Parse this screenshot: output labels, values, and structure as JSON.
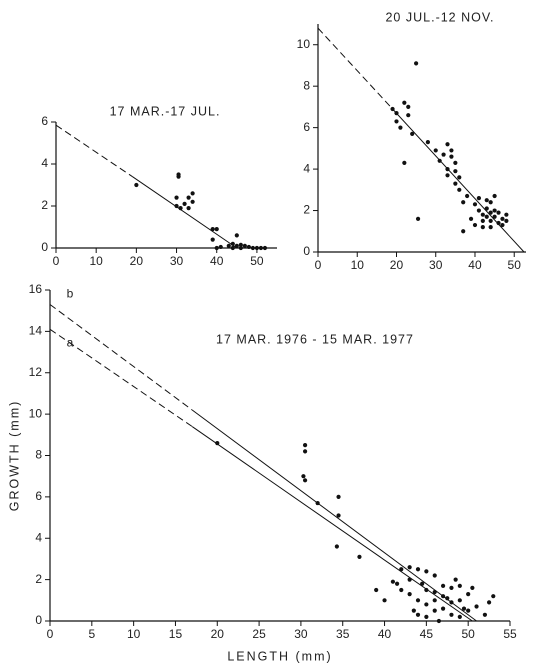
{
  "chart_data": [
    {
      "type": "scatter",
      "title": "17 MAR.-17 JUL.",
      "x": [
        20,
        30.5,
        30.5,
        30,
        30,
        31,
        32,
        33,
        34,
        34,
        33,
        39,
        40,
        39,
        40,
        41,
        43,
        44,
        44,
        45,
        45,
        46,
        46,
        47,
        48,
        49,
        50,
        51,
        52
      ],
      "values": [
        3,
        3.5,
        3.4,
        2.4,
        2,
        1.9,
        2.1,
        2.4,
        2.6,
        2.2,
        1.9,
        0.9,
        0.9,
        0.4,
        0,
        0.05,
        0.1,
        0.2,
        0,
        0.6,
        0.1,
        0.15,
        0,
        0.1,
        0.05,
        0,
        0,
        0,
        0
      ],
      "xlim": [
        0,
        55
      ],
      "ylim": [
        0,
        6
      ],
      "xticks": [
        0,
        10,
        20,
        30,
        40,
        50
      ],
      "yticks": [
        0,
        2,
        4,
        6
      ],
      "lines": [
        {
          "dashed": {
            "x": [
              0,
              19
            ],
            "values": [
              5.85,
              3.4
            ]
          },
          "solid": {
            "x": [
              19,
              45
            ],
            "values": [
              3.4,
              0
            ]
          }
        }
      ]
    },
    {
      "type": "scatter",
      "title": "20 JUL.-12 NOV.",
      "x": [
        19,
        20,
        20,
        21,
        22,
        22,
        23,
        23,
        24,
        25,
        25.5,
        28,
        30,
        31,
        32,
        33,
        33,
        33,
        34,
        34,
        35,
        35,
        35,
        36,
        36,
        37,
        37,
        38,
        39,
        40,
        40,
        41,
        41,
        42,
        42,
        43,
        43,
        43,
        44,
        44,
        44,
        45,
        45,
        45,
        46,
        46,
        47,
        47,
        48,
        48,
        42,
        44
      ],
      "values": [
        6.9,
        6.7,
        6.3,
        6,
        7.2,
        4.3,
        7,
        6.6,
        5.7,
        9.1,
        1.6,
        5.3,
        4.9,
        4.4,
        4.7,
        5.2,
        4,
        3.7,
        4.9,
        4.6,
        4.3,
        3.9,
        3.3,
        3.6,
        3,
        1,
        2.4,
        2.7,
        1.6,
        2.3,
        1.3,
        2,
        2.6,
        1.8,
        1.5,
        2.1,
        1.7,
        2.5,
        2.4,
        1.5,
        1.2,
        2.7,
        2,
        1.7,
        1.4,
        1.9,
        1.6,
        1.3,
        1.8,
        1.5,
        1.2,
        1.9
      ],
      "xlim": [
        0,
        53
      ],
      "ylim": [
        0,
        11
      ],
      "xticks": [
        0,
        10,
        20,
        30,
        40,
        50
      ],
      "yticks": [
        0,
        2,
        4,
        6,
        8,
        10
      ],
      "lines": [
        {
          "dashed": {
            "x": [
              0,
              19
            ],
            "values": [
              10.8,
              6.9
            ]
          },
          "solid": {
            "x": [
              19,
              52.5
            ],
            "values": [
              6.9,
              0
            ]
          }
        }
      ]
    },
    {
      "type": "scatter",
      "title": "17 MAR. 1976 - 15 MAR. 1977",
      "xlabel": "LENGTH (mm)",
      "ylabel": "GROWTH (mm)",
      "x": [
        20,
        30.5,
        30.5,
        30.3,
        30.5,
        32,
        34.5,
        34.5,
        34.3,
        37,
        39,
        40,
        41,
        41.5,
        42,
        42,
        43,
        43,
        43,
        43.5,
        44,
        44,
        44,
        45,
        45,
        45,
        45,
        46,
        46,
        46,
        46.5,
        47,
        47,
        47,
        47.5,
        48,
        48,
        48,
        48.5,
        49,
        49,
        49,
        50,
        50,
        50.5,
        51,
        52,
        52.5,
        53,
        44.5,
        46,
        49.5
      ],
      "values": [
        8.6,
        8.5,
        8.2,
        7,
        6.8,
        5.7,
        6,
        5.1,
        3.6,
        3.1,
        1.5,
        1,
        1.9,
        1.8,
        1.5,
        2.5,
        2.6,
        2,
        1.3,
        0.5,
        2.5,
        1,
        0.3,
        2.4,
        1.5,
        0.8,
        0.2,
        1.4,
        2.2,
        0.5,
        0,
        1.2,
        1.7,
        0.6,
        1.1,
        1.6,
        0.9,
        0.3,
        2,
        1.7,
        1,
        0.2,
        1.3,
        0.5,
        1.6,
        0.7,
        0.3,
        0.9,
        1.2,
        1.8,
        1,
        0.6
      ],
      "xlim": [
        0,
        55
      ],
      "ylim": [
        0,
        16
      ],
      "xticks": [
        0,
        5,
        10,
        15,
        20,
        25,
        30,
        35,
        40,
        45,
        50,
        55
      ],
      "yticks": [
        0,
        2,
        4,
        6,
        8,
        10,
        12,
        14,
        16
      ],
      "lines": [
        {
          "label": "a",
          "dashed": {
            "x": [
              0,
              17
            ],
            "values": [
              14.1,
              9.4
            ]
          },
          "solid": {
            "x": [
              17,
              50.5
            ],
            "values": [
              9.4,
              0
            ]
          }
        },
        {
          "label": "b",
          "dashed": {
            "x": [
              0,
              17
            ],
            "values": [
              15.3,
              10.2
            ]
          },
          "solid": {
            "x": [
              17,
              51
            ],
            "values": [
              10.2,
              0
            ]
          }
        }
      ]
    }
  ]
}
